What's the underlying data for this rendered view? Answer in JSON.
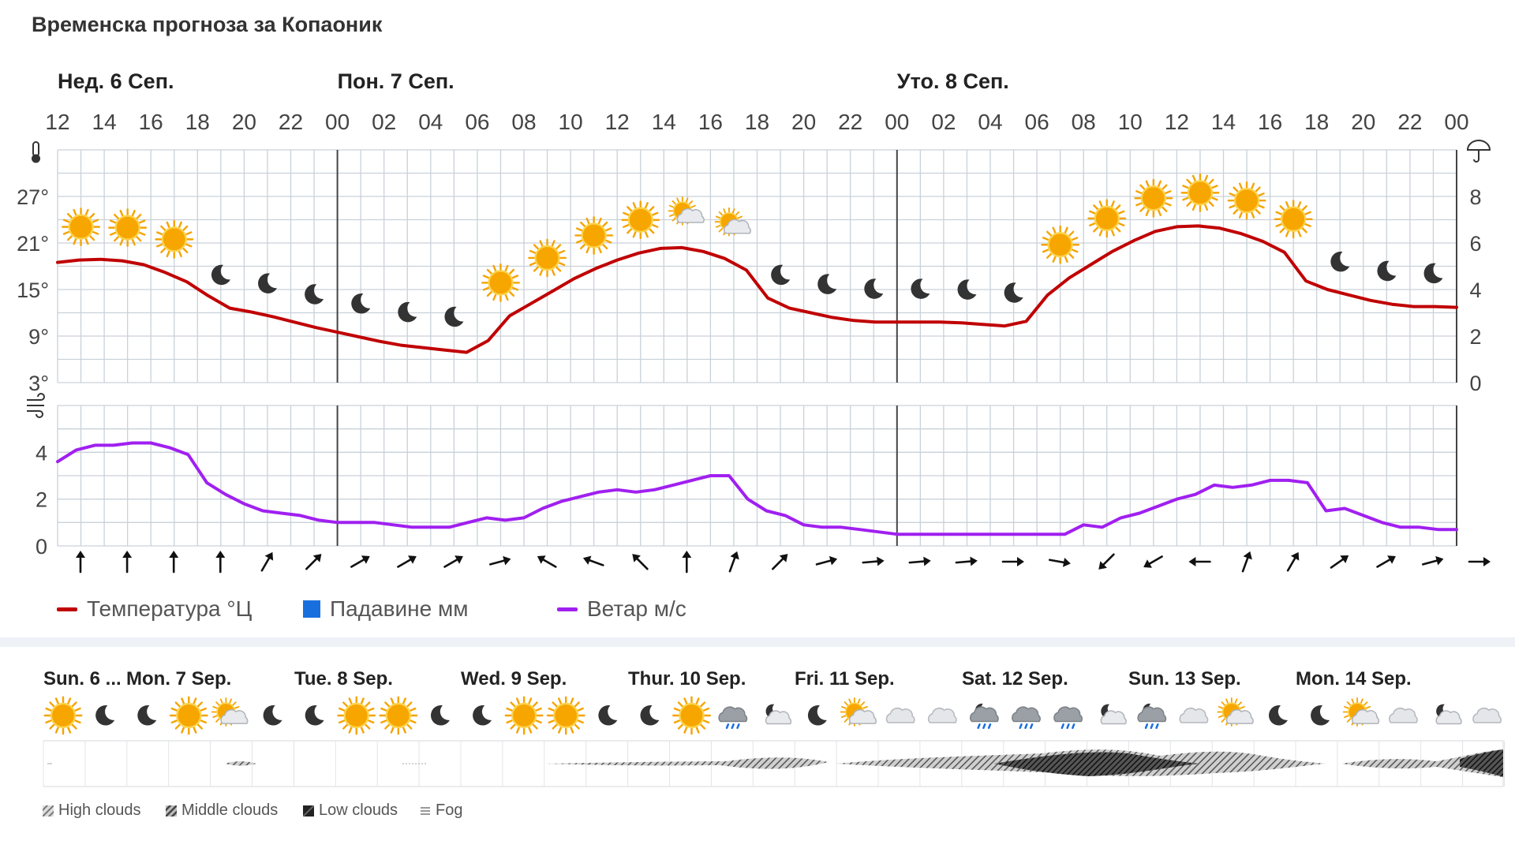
{
  "title": "Временска прогноза за Копаоник",
  "days": [
    "Нед. 6 Сеп.",
    "Пон. 7 Сеп.",
    "Уто. 8 Сеп."
  ],
  "hours": [
    "12",
    "14",
    "16",
    "18",
    "20",
    "22",
    "00",
    "02",
    "04",
    "06",
    "08",
    "10",
    "12",
    "14",
    "16",
    "18",
    "20",
    "22",
    "00",
    "02",
    "04",
    "06",
    "08",
    "10",
    "12",
    "14",
    "16",
    "18",
    "20",
    "22",
    "00"
  ],
  "weather_icons": [
    "sun",
    "sun",
    "sun",
    "moon",
    "moon",
    "moon",
    "moon",
    "moon",
    "moon",
    "sun",
    "sun",
    "sun",
    "sun",
    "sun-cloud",
    "sun-cloud",
    "moon",
    "moon",
    "moon",
    "moon",
    "moon",
    "moon",
    "sun",
    "sun",
    "sun",
    "sun",
    "sun",
    "sun",
    "moon",
    "moon",
    "moon"
  ],
  "wind_directions_deg": [
    180,
    180,
    180,
    180,
    210,
    225,
    240,
    240,
    240,
    255,
    120,
    110,
    135,
    180,
    200,
    225,
    255,
    265,
    265,
    265,
    270,
    280,
    45,
    60,
    90,
    200,
    210,
    235,
    240,
    255,
    270
  ],
  "legend": {
    "temperature": "Температура °Ц",
    "precipitation": "Падавине мм",
    "wind": "Ветар м/с"
  },
  "colors": {
    "temperature": "#c00000",
    "wind": "#a020f0",
    "precipitation": "#1a6fdf",
    "grid": "#c9d1d9"
  },
  "chart_data": [
    {
      "type": "line",
      "series": [
        {
          "name": "Температура °Ц",
          "values": [
            18.5,
            18.8,
            18.9,
            18.7,
            18.2,
            17.2,
            16,
            14.2,
            12.6,
            12.1,
            11.5,
            10.8,
            10.1,
            9.5,
            8.9,
            8.3,
            7.8,
            7.5,
            7.2,
            6.9,
            8.4,
            11.6,
            13.2,
            14.8,
            16.4,
            17.7,
            18.8,
            19.7,
            20.3,
            20.4,
            19.9,
            19,
            17.5,
            13.9,
            12.6,
            12,
            11.4,
            11,
            10.8,
            10.8,
            10.8,
            10.8,
            10.7,
            10.5,
            10.3,
            10.9,
            14.3,
            16.5,
            18.2,
            19.9,
            21.3,
            22.5,
            23.1,
            23.2,
            22.9,
            22.2,
            21.2,
            19.8,
            16.1,
            15,
            14.3,
            13.6,
            13.1,
            12.8,
            12.8,
            12.7
          ]
        }
      ],
      "x_start": "12",
      "x_step_hours": 1,
      "ylim": [
        3,
        33
      ],
      "y_ticks_left": [
        "3°",
        "9°",
        "15°",
        "21°",
        "27°"
      ],
      "y_ticks_right": [
        "0",
        "2",
        "4",
        "6",
        "8"
      ],
      "grid": true
    },
    {
      "type": "line",
      "series": [
        {
          "name": "Ветар м/с",
          "values": [
            3.6,
            4.1,
            4.3,
            4.3,
            4.4,
            4.4,
            4.2,
            3.9,
            2.7,
            2.2,
            1.8,
            1.5,
            1.4,
            1.3,
            1.1,
            1,
            1,
            1,
            0.9,
            0.8,
            0.8,
            0.8,
            1,
            1.2,
            1.1,
            1.2,
            1.6,
            1.9,
            2.1,
            2.3,
            2.4,
            2.3,
            2.4,
            2.6,
            2.8,
            3,
            3,
            2,
            1.5,
            1.3,
            0.9,
            0.8,
            0.8,
            0.7,
            0.6,
            0.5,
            0.5,
            0.5,
            0.5,
            0.5,
            0.5,
            0.5,
            0.5,
            0.5,
            0.5,
            0.9,
            0.8,
            1.2,
            1.4,
            1.7,
            2,
            2.2,
            2.6,
            2.5,
            2.6,
            2.8,
            2.8,
            2.7,
            1.5,
            1.6,
            1.3,
            1,
            0.8,
            0.8,
            0.7,
            0.7
          ]
        }
      ],
      "ylim": [
        0,
        6
      ],
      "y_ticks_left": [
        "0",
        "2",
        "4"
      ],
      "grid": true
    }
  ],
  "bottom": {
    "days": [
      "Sun. 6 ...",
      "Mon. 7 Sep.",
      "Tue. 8 Sep.",
      "Wed. 9 Sep.",
      "Thur. 10 Sep.",
      "Fri. 11 Sep.",
      "Sat. 12 Sep.",
      "Sun. 13 Sep.",
      "Mon. 14 Sep."
    ],
    "icons": [
      "sun",
      "moon",
      "moon",
      "sun",
      "sun-cloud",
      "moon",
      "moon",
      "sun",
      "sun",
      "moon",
      "moon",
      "sun",
      "sun",
      "moon",
      "moon",
      "sun",
      "cloud-rain",
      "moon-cloud",
      "moon",
      "sun-cloud",
      "cloud",
      "cloud",
      "moon-cloud-rain",
      "cloud-rain",
      "cloud-rain",
      "moon-cloud",
      "moon-cloud-rain",
      "cloud",
      "sun-cloud",
      "moon",
      "moon",
      "sun-cloud",
      "cloud",
      "moon-cloud",
      "cloud"
    ],
    "cloud_legend": [
      "High clouds",
      "Middle clouds",
      "Low clouds",
      "Fog"
    ]
  },
  "icon_names": {
    "thermometer": "thermometer-icon",
    "umbrella": "umbrella-icon",
    "wind": "wind-icon"
  }
}
